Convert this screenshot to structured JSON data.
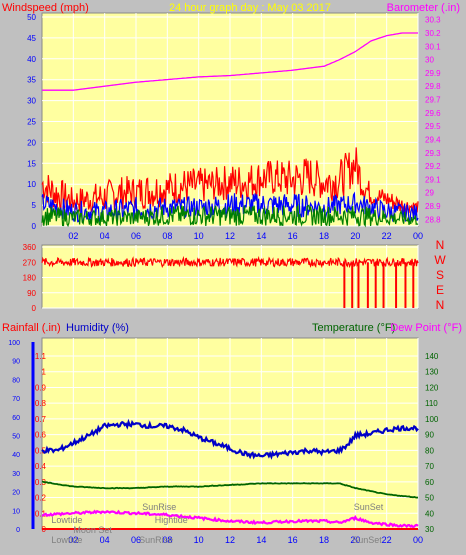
{
  "colors": {
    "background": "#c0c0c0",
    "plot_bg": "#ffffa0",
    "grid": "#ffffff",
    "wind_gust": "#ff0000",
    "wind_avg": "#0000ff",
    "wind_low": "#008000",
    "barometer": "#ff00ff",
    "direction": "#ff0000",
    "rain": "#ff0000",
    "humidity": "#0000c8",
    "temperature": "#006400",
    "dewpoint": "#ff00ff",
    "title": "#ffff00",
    "sun_moon_text": "#808080"
  },
  "chart_data": [
    {
      "type": "line",
      "title": "24 hour graph day : May 03 2017",
      "ylabel": "Windspeed (mph)",
      "y2label": "Barometer (.in)",
      "x_ticks": [
        "02",
        "04",
        "06",
        "08",
        "10",
        "12",
        "14",
        "16",
        "18",
        "20",
        "22",
        "00"
      ],
      "ylim": [
        0,
        50
      ],
      "yticks": [
        0,
        5,
        10,
        15,
        20,
        25,
        30,
        35,
        40,
        45,
        50
      ],
      "y2lim": [
        28.75,
        30.35
      ],
      "y2ticks": [
        "28.8",
        "28.9",
        "29",
        "29.1",
        "29.2",
        "29.3",
        "29.4",
        "29.5",
        "29.6",
        "29.7",
        "29.8",
        "29.9",
        "30",
        "30.1",
        "30.2",
        "30.3"
      ],
      "grid": true,
      "series": [
        {
          "key": "gust",
          "x": [
            0,
            1,
            2,
            3,
            4,
            5,
            6,
            7,
            8,
            9,
            10,
            11,
            12,
            13,
            14,
            15,
            16,
            17,
            18,
            19,
            19.5,
            20,
            20.5,
            21,
            22,
            23,
            24
          ],
          "y_low": [
            6,
            3,
            3,
            3,
            3,
            4,
            4,
            4,
            5,
            5,
            5,
            6,
            6,
            6,
            7,
            7,
            6,
            7,
            6,
            6,
            8,
            10,
            6,
            5,
            4,
            3,
            3
          ],
          "y_high": [
            14,
            12,
            9,
            10,
            11,
            12,
            12,
            13,
            13,
            14,
            14,
            14,
            15,
            15,
            16,
            16,
            16,
            17,
            15,
            16,
            18,
            20,
            14,
            10,
            9,
            7,
            6
          ]
        },
        {
          "key": "avg",
          "x": [
            0,
            2,
            4,
            6,
            8,
            10,
            12,
            14,
            16,
            18,
            20,
            22,
            24
          ],
          "y_low": [
            3,
            1,
            1,
            1,
            2,
            2,
            2,
            2,
            2,
            2,
            3,
            1,
            1
          ],
          "y_high": [
            8,
            6,
            6,
            7,
            7,
            7,
            8,
            8,
            8,
            7,
            8,
            6,
            5
          ]
        },
        {
          "key": "low",
          "x": [
            0,
            2,
            4,
            6,
            8,
            10,
            12,
            14,
            16,
            18,
            20,
            22,
            24
          ],
          "y_low": [
            0,
            0,
            0,
            0,
            0,
            0,
            0,
            0,
            0,
            0,
            0,
            0,
            0
          ],
          "y_high": [
            5,
            4,
            4,
            4,
            5,
            5,
            5,
            5,
            5,
            5,
            5,
            4,
            3
          ]
        },
        {
          "key": "barometer",
          "axis": "y2",
          "x": [
            0,
            2,
            4,
            6,
            8,
            10,
            12,
            14,
            16,
            18,
            19,
            20,
            21,
            22,
            23,
            24
          ],
          "y": [
            29.77,
            29.77,
            29.8,
            29.83,
            29.85,
            29.87,
            29.88,
            29.9,
            29.92,
            29.95,
            30.0,
            30.06,
            30.14,
            30.18,
            30.2,
            30.2
          ]
        }
      ]
    },
    {
      "type": "line",
      "left_labels": [
        "360",
        "270",
        "180",
        "90",
        "0"
      ],
      "compass": [
        "N",
        "W",
        "S",
        "E",
        "N"
      ],
      "ylim": [
        0,
        360
      ],
      "series": [
        {
          "key": "direction",
          "x": [
            0,
            4,
            8,
            12,
            16,
            19,
            24
          ],
          "y": [
            270,
            270,
            270,
            270,
            270,
            270,
            270
          ],
          "dropouts_x": [
            19.3,
            19.8,
            20.2,
            20.8,
            21.3,
            21.8,
            22.6,
            23.2,
            23.7
          ]
        }
      ]
    },
    {
      "type": "line",
      "label_rain": "Rainfall (.in)",
      "label_humidity": "Humidity (%)",
      "label_temperature": "Temperature (°F)",
      "label_dewpoint": "Dew Point (°F)",
      "rain_ticks": [
        "0",
        "10",
        "20",
        "30",
        "40",
        "50",
        "60",
        "70",
        "80",
        "90",
        "100"
      ],
      "humidity_ticks": [
        "0",
        "0.1",
        "0.2",
        "0.3",
        "0.4",
        "0.5",
        "0.6",
        "0.7",
        "0.8",
        "0.9",
        "1",
        "1.1"
      ],
      "hum_ticks": [
        "0",
        "10",
        "20",
        "30",
        "40",
        "50",
        "60",
        "70",
        "80",
        "90",
        "100"
      ],
      "temp_ticks": [
        "30",
        "40",
        "50",
        "60",
        "70",
        "80",
        "90",
        "100",
        "110",
        "120",
        "130",
        "140"
      ],
      "x_ticks": [
        "02",
        "04",
        "06",
        "08",
        "10",
        "12",
        "14",
        "16",
        "18",
        "20",
        "22",
        "00"
      ],
      "events": [
        {
          "name": "SunRise",
          "x": 6.4,
          "row": "top"
        },
        {
          "name": "SunSet",
          "x": 19.9,
          "row": "top"
        },
        {
          "name": "Lowtide",
          "x": 0.6,
          "row": "mid"
        },
        {
          "name": "Hightide",
          "x": 7.2,
          "row": "mid"
        },
        {
          "name": "Moon Set",
          "x": 2.0,
          "row": "low"
        },
        {
          "name": "Lowtide",
          "x": 0.6,
          "row": "bottom"
        },
        {
          "name": "SunRise",
          "x": 6.2,
          "row": "bottom"
        },
        {
          "name": "SunSet",
          "x": 19.8,
          "row": "bottom"
        }
      ],
      "series": [
        {
          "key": "humidity",
          "axis": "humidity",
          "x": [
            0,
            1,
            2,
            3,
            4,
            5,
            6,
            7,
            8,
            9,
            10,
            11,
            12,
            13,
            14,
            15,
            16,
            17,
            18,
            19,
            19.5,
            20,
            21,
            22,
            23,
            24
          ],
          "y": [
            42,
            42,
            46,
            50,
            55,
            56,
            56,
            55,
            55,
            53,
            49,
            46,
            43,
            40,
            39,
            40,
            41,
            42,
            41,
            42,
            45,
            50,
            51,
            53,
            54,
            54
          ]
        },
        {
          "key": "temperature",
          "axis": "temp",
          "x": [
            0,
            2,
            4,
            6,
            8,
            10,
            12,
            14,
            16,
            18,
            19,
            20,
            21,
            22,
            23,
            24
          ],
          "y": [
            60,
            57,
            56,
            56,
            57,
            57,
            58,
            59,
            59,
            59,
            59,
            56,
            54,
            52,
            51,
            50
          ]
        },
        {
          "key": "dewpoint",
          "axis": "temp",
          "x": [
            0,
            2,
            4,
            6,
            8,
            10,
            12,
            14,
            16,
            18,
            19,
            20,
            21,
            22,
            23,
            24
          ],
          "y": [
            39,
            40,
            41,
            40,
            39,
            37,
            35,
            34,
            35,
            35,
            34,
            37,
            34,
            33,
            32,
            32
          ]
        },
        {
          "key": "rain",
          "axis": "rain",
          "x": [
            0,
            24
          ],
          "y": [
            0,
            0
          ]
        }
      ]
    }
  ]
}
